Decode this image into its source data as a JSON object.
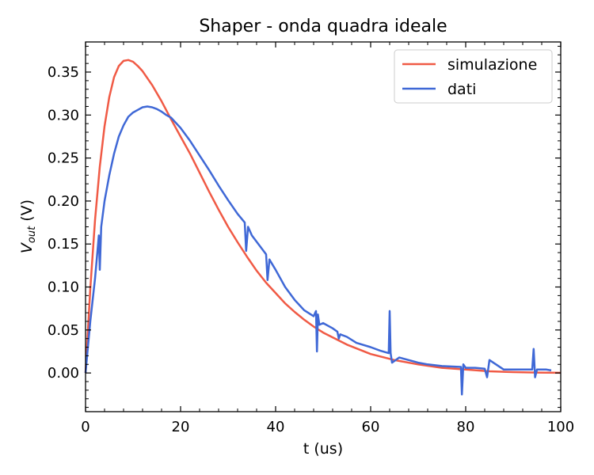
{
  "chart_data": {
    "type": "line",
    "title": "Shaper - onda quadra ideale",
    "xlabel": "t (us)",
    "ylabel_main": "V",
    "ylabel_sub": "out",
    "ylabel_unit": " (V)",
    "xlim": [
      0,
      100
    ],
    "ylim": [
      -0.045,
      0.385
    ],
    "xticks": [
      0,
      20,
      40,
      60,
      80,
      100
    ],
    "xtick_labels": [
      "0",
      "20",
      "40",
      "60",
      "80",
      "100"
    ],
    "yticks": [
      0.0,
      0.05,
      0.1,
      0.15,
      0.2,
      0.25,
      0.3,
      0.35
    ],
    "ytick_labels": [
      "0.00",
      "0.05",
      "0.10",
      "0.15",
      "0.20",
      "0.25",
      "0.30",
      "0.35"
    ],
    "grid": false,
    "legend_position": "top-right",
    "series": [
      {
        "name": "simulazione",
        "color": "#f05a45",
        "x": [
          0,
          1,
          2,
          3,
          4,
          5,
          6,
          7,
          8,
          9,
          10,
          11,
          12,
          14,
          16,
          18,
          20,
          22,
          24,
          26,
          28,
          30,
          32,
          34,
          36,
          38,
          40,
          42,
          44,
          46,
          48,
          50,
          55,
          60,
          65,
          70,
          75,
          80,
          85,
          90,
          95,
          100
        ],
        "y": [
          0.0,
          0.098,
          0.178,
          0.24,
          0.287,
          0.321,
          0.344,
          0.357,
          0.363,
          0.364,
          0.362,
          0.357,
          0.351,
          0.335,
          0.316,
          0.295,
          0.275,
          0.255,
          0.233,
          0.211,
          0.19,
          0.17,
          0.152,
          0.135,
          0.119,
          0.105,
          0.093,
          0.081,
          0.071,
          0.062,
          0.054,
          0.047,
          0.033,
          0.022,
          0.015,
          0.01,
          0.006,
          0.004,
          0.002,
          0.001,
          0.0005,
          0.0002
        ]
      },
      {
        "name": "dati",
        "color": "#3f68d6",
        "x": [
          0,
          1,
          2,
          2.8,
          3,
          3.3,
          4,
          5,
          6,
          7,
          8,
          9,
          10,
          11,
          12,
          13,
          14,
          15,
          16,
          17,
          18,
          19,
          20,
          22,
          24,
          26,
          28,
          30,
          32,
          33.5,
          33.8,
          34.2,
          35,
          38,
          38.3,
          38.7,
          40,
          42,
          44,
          46,
          48,
          48.5,
          48.7,
          48.9,
          49.2,
          50,
          52,
          53,
          53.3,
          53.6,
          55,
          57,
          60,
          62,
          63.8,
          64,
          64.2,
          64.5,
          66,
          68,
          70,
          72,
          75,
          79,
          79.2,
          79.5,
          80,
          82,
          84,
          84.5,
          85,
          88,
          90,
          94,
          94.3,
          94.6,
          95,
          97,
          98
        ],
        "y": [
          0.0,
          0.06,
          0.11,
          0.16,
          0.12,
          0.17,
          0.2,
          0.23,
          0.255,
          0.275,
          0.288,
          0.298,
          0.303,
          0.306,
          0.309,
          0.31,
          0.309,
          0.307,
          0.304,
          0.3,
          0.297,
          0.291,
          0.285,
          0.27,
          0.253,
          0.236,
          0.218,
          0.201,
          0.185,
          0.175,
          0.142,
          0.17,
          0.16,
          0.138,
          0.108,
          0.132,
          0.12,
          0.1,
          0.085,
          0.073,
          0.066,
          0.072,
          0.025,
          0.068,
          0.056,
          0.058,
          0.052,
          0.048,
          0.04,
          0.045,
          0.042,
          0.035,
          0.03,
          0.026,
          0.023,
          0.072,
          0.023,
          0.012,
          0.018,
          0.015,
          0.012,
          0.01,
          0.008,
          0.007,
          -0.025,
          0.01,
          0.006,
          0.006,
          0.005,
          -0.005,
          0.015,
          0.004,
          0.004,
          0.004,
          0.028,
          -0.005,
          0.004,
          0.004,
          0.003
        ]
      }
    ]
  }
}
